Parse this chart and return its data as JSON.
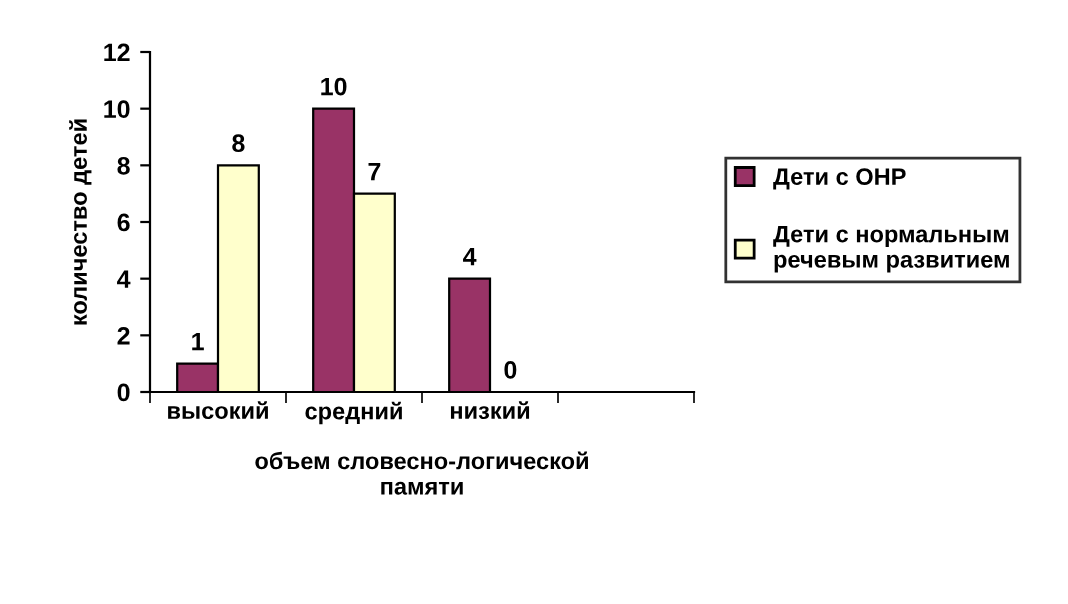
{
  "chart_data": {
    "type": "bar",
    "xlabel": "объем словесно-логической\nпамяти",
    "ylabel": "количество детей",
    "categories": [
      "высокий",
      "средний",
      "низкий",
      null
    ],
    "series": [
      {
        "name": "Дети с ОНР",
        "color": "#993366",
        "values": [
          1,
          10,
          4,
          null
        ]
      },
      {
        "name": "Дети с нормальным\nречевым развитием",
        "color": "#ffffcc",
        "values": [
          8,
          7,
          0,
          null
        ]
      }
    ],
    "ylim": [
      0,
      12
    ],
    "yticks": [
      0,
      2,
      4,
      6,
      8,
      10,
      12
    ],
    "grid": false,
    "legend": "right",
    "data_labels": true
  }
}
